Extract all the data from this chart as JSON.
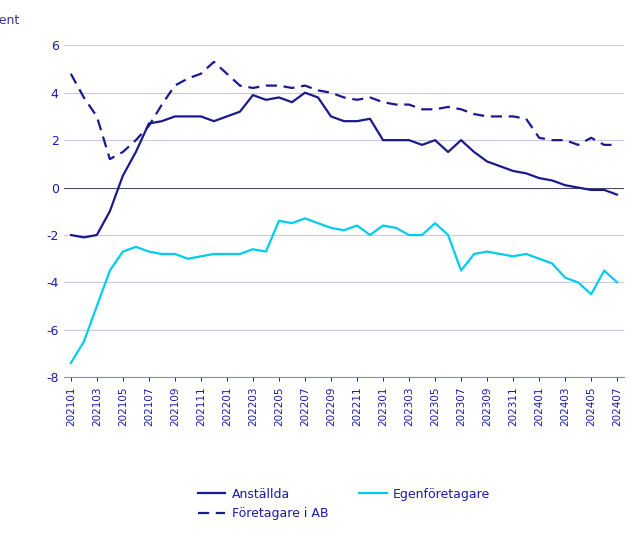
{
  "background_color": "#ffffff",
  "grid_color": "#c8c8e8",
  "line_color_anstalld": "#1a1a8c",
  "line_color_foretagare": "#1a1a8c",
  "line_color_egenforetagare": "#00ccee",
  "legend_anstalld": "Anställda",
  "legend_foretagare": "Företagare i AB",
  "legend_egenforetagare": "Egenföretagare",
  "anstalld_vals": [
    -2.0,
    -2.1,
    -2.0,
    -1.0,
    0.5,
    1.5,
    2.7,
    2.8,
    3.0,
    3.0,
    3.0,
    2.8,
    3.0,
    3.2,
    3.9,
    3.7,
    3.8,
    3.6,
    4.0,
    3.8,
    3.0,
    2.8,
    2.8,
    2.9,
    2.0,
    2.0,
    2.0,
    1.8,
    2.0,
    1.5,
    2.0,
    1.5,
    1.1,
    0.9,
    0.7,
    0.6,
    0.4,
    0.3,
    0.1,
    0.0,
    -0.1,
    -0.1,
    -0.3
  ],
  "foretagare_ab_vals": [
    4.8,
    3.8,
    3.0,
    1.2,
    1.5,
    2.0,
    2.6,
    3.5,
    4.3,
    4.6,
    4.8,
    5.3,
    4.8,
    4.3,
    4.2,
    4.3,
    4.3,
    4.2,
    4.3,
    4.1,
    4.0,
    3.8,
    3.7,
    3.8,
    3.6,
    3.5,
    3.5,
    3.3,
    3.3,
    3.4,
    3.3,
    3.1,
    3.0,
    3.0,
    3.0,
    2.9,
    2.1,
    2.0,
    2.0,
    1.8,
    2.1,
    1.8,
    1.8
  ],
  "egenforetagare_vals": [
    -7.4,
    -6.5,
    -5.0,
    -3.5,
    -2.7,
    -2.5,
    -2.7,
    -2.8,
    -2.8,
    -3.0,
    -2.9,
    -2.8,
    -2.8,
    -2.8,
    -2.6,
    -2.7,
    -1.4,
    -1.5,
    -1.3,
    -1.5,
    -1.7,
    -1.8,
    -1.6,
    -2.0,
    -1.6,
    -1.7,
    -2.0,
    -2.0,
    -1.5,
    -2.0,
    -3.5,
    -2.8,
    -2.7,
    -2.8,
    -2.9,
    -2.8,
    -3.0,
    -3.2,
    -3.8,
    -4.0,
    -4.5,
    -3.5,
    -4.0
  ],
  "tick_labels": [
    "202101",
    "202103",
    "202105",
    "202107",
    "202109",
    "202111",
    "202201",
    "202203",
    "202205",
    "202207",
    "202209",
    "202211",
    "202301",
    "202303",
    "202305",
    "202307",
    "202309",
    "202311",
    "202401",
    "202403",
    "202405",
    "202407"
  ]
}
